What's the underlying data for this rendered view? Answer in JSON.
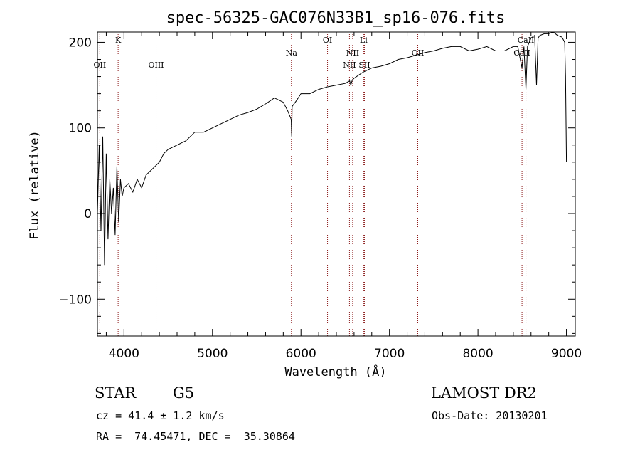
{
  "chart_data": {
    "type": "line",
    "title": "spec-56325-GAC076N33B1_sp16-076.fits",
    "xlabel": "Wavelength (Å)",
    "ylabel": "Flux (relative)",
    "xlim": [
      3700,
      9100
    ],
    "ylim": [
      -143,
      212
    ],
    "xticks": [
      4000,
      5000,
      6000,
      7000,
      8000,
      9000
    ],
    "yticks": [
      -100,
      0,
      100,
      200
    ],
    "xtick_labels": [
      "4000",
      "5000",
      "6000",
      "7000",
      "8000",
      "9000"
    ],
    "ytick_labels": [
      "−100",
      "0",
      "100",
      "200"
    ],
    "grid": false,
    "series": [
      {
        "x": [
          3700,
          3720,
          3740,
          3760,
          3780,
          3800,
          3820,
          3840,
          3860,
          3880,
          3900,
          3920,
          3940,
          3960,
          3980,
          4000,
          4050,
          4100,
          4150,
          4200,
          4250,
          4300,
          4350,
          4400,
          4450,
          4500,
          4600,
          4700,
          4800,
          4900,
          5000,
          5100,
          5200,
          5300,
          5400,
          5500,
          5600,
          5700,
          5800,
          5850,
          5890,
          5895,
          5900,
          5950,
          6000,
          6100,
          6200,
          6300,
          6400,
          6500,
          6550,
          6563,
          6580,
          6600,
          6700,
          6800,
          6900,
          7000,
          7100,
          7200,
          7300,
          7400,
          7500,
          7600,
          7700,
          7800,
          7900,
          8000,
          8100,
          8200,
          8300,
          8400,
          8450,
          8498,
          8520,
          8542,
          8560,
          8600,
          8640,
          8662,
          8680,
          8700,
          8750,
          8800,
          8850,
          8900,
          8950,
          8980,
          8990,
          9000
        ],
        "y": [
          0,
          80,
          -20,
          90,
          -60,
          70,
          -30,
          40,
          0,
          30,
          -25,
          55,
          -10,
          40,
          20,
          30,
          35,
          25,
          40,
          30,
          45,
          50,
          55,
          60,
          70,
          75,
          80,
          85,
          95,
          95,
          100,
          105,
          110,
          115,
          118,
          122,
          128,
          135,
          130,
          120,
          110,
          90,
          125,
          132,
          140,
          140,
          145,
          148,
          150,
          152,
          155,
          150,
          156,
          158,
          165,
          170,
          172,
          175,
          180,
          182,
          185,
          188,
          190,
          193,
          195,
          195,
          190,
          192,
          195,
          190,
          190,
          195,
          195,
          170,
          195,
          145,
          195,
          205,
          208,
          150,
          205,
          208,
          210,
          210,
          212,
          208,
          206,
          200,
          160,
          60
        ]
      }
    ],
    "line_markers": [
      {
        "label": "OII",
        "x": 3727,
        "row": 2
      },
      {
        "label": "K",
        "x": 3934,
        "row": 0
      },
      {
        "label": "OIII",
        "x": 4363,
        "row": 2
      },
      {
        "label": "Na",
        "x": 5892,
        "row": 1
      },
      {
        "label": "OI",
        "x": 6300,
        "row": 0
      },
      {
        "label": "NII",
        "x": 6548,
        "row": 2
      },
      {
        "label": "NII",
        "x": 6584,
        "row": 1
      },
      {
        "label": "Li",
        "x": 6708,
        "row": 0
      },
      {
        "label": "SII",
        "x": 6717,
        "row": 2
      },
      {
        "label": "OII",
        "x": 7320,
        "row": 1
      },
      {
        "label": "CaII",
        "x": 8498,
        "row": 1
      },
      {
        "label": "CaII",
        "x": 8542,
        "row": 0
      }
    ]
  },
  "info": {
    "class": "STAR",
    "subclass": "G5",
    "survey": "LAMOST DR2",
    "cz": "cz = 41.4 ± 1.2 km/s",
    "obs_date": "Obs-Date: 20130201",
    "coords": "RA =  74.45471, DEC =  35.30864"
  }
}
